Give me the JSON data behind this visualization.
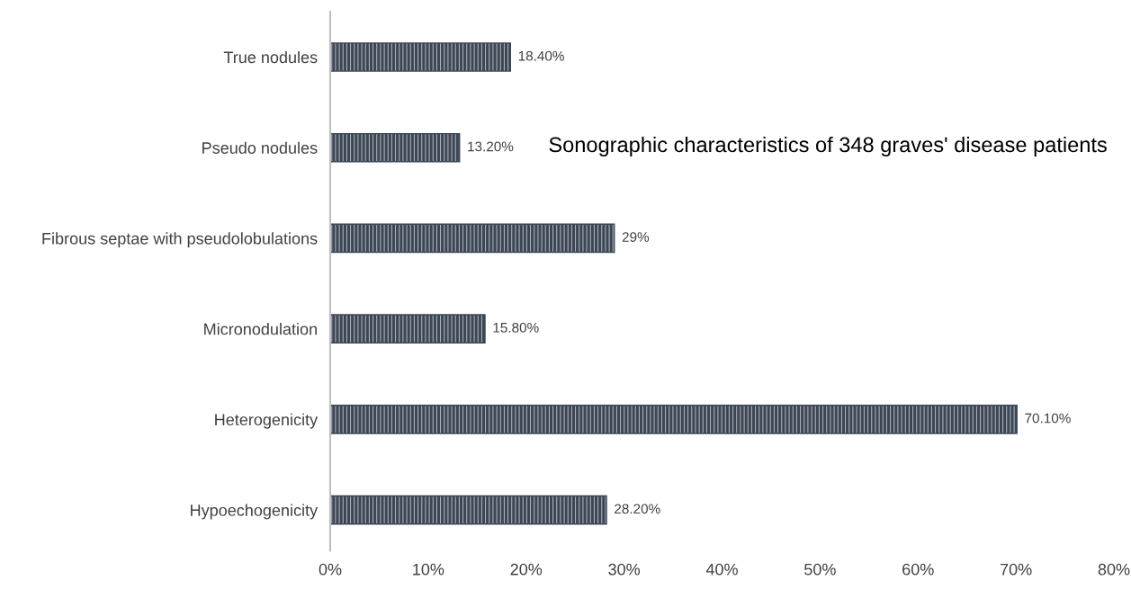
{
  "chart_data": {
    "type": "bar",
    "orientation": "horizontal",
    "title": "Sonographic characteristics of 348 graves' disease patients",
    "categories": [
      "True nodules",
      "Pseudo nodules",
      "Fibrous septae with pseudolobulations",
      "Micronodulation",
      "Heterogenicity",
      "Hypoechogenicity"
    ],
    "values": [
      18.4,
      13.2,
      29,
      15.8,
      70.1,
      28.2
    ],
    "value_labels": [
      "18.40%",
      "13.20%",
      "29%",
      "15.80%",
      "70.10%",
      "28.20%"
    ],
    "color": "#3b4656",
    "xlim": [
      0,
      80
    ],
    "xticks": [
      {
        "value": 0,
        "label": "0%"
      },
      {
        "value": 10,
        "label": "10%"
      },
      {
        "value": 20,
        "label": "20%"
      },
      {
        "value": 30,
        "label": "30%"
      },
      {
        "value": 40,
        "label": "40%"
      },
      {
        "value": 50,
        "label": "50%"
      },
      {
        "value": 60,
        "label": "60%"
      },
      {
        "value": 70,
        "label": "70%"
      },
      {
        "value": 80,
        "label": "80%"
      }
    ],
    "grid": false,
    "legend": false
  }
}
